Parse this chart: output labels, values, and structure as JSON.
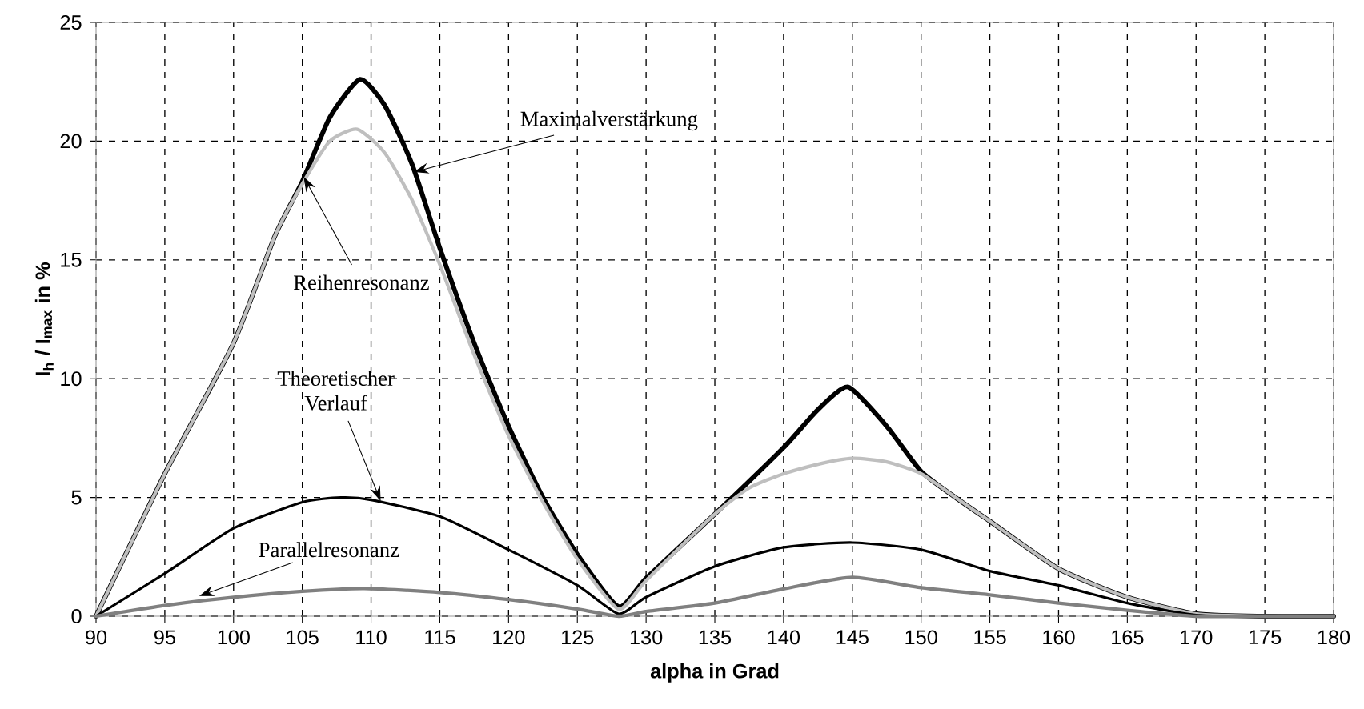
{
  "chart_data": {
    "type": "line",
    "xlabel": "alpha in Grad",
    "ylabel": "I$_{h}$ / I$_{max}$ in %",
    "xlim": [
      90,
      180
    ],
    "ylim": [
      0,
      25
    ],
    "xticks": [
      90,
      95,
      100,
      105,
      110,
      115,
      120,
      125,
      130,
      135,
      140,
      145,
      150,
      155,
      160,
      165,
      170,
      175,
      180
    ],
    "yticks": [
      0,
      5,
      10,
      15,
      20,
      25
    ],
    "grid": true,
    "series": [
      {
        "color": "#000000",
        "x": [
          90,
          95,
          100,
          103,
          105,
          107,
          109.2,
          111,
          113,
          115,
          117.5,
          120,
          122.5,
          125,
          128,
          130,
          135,
          140,
          142.5,
          144.7,
          147.5,
          150,
          152.5,
          155,
          160,
          165,
          170,
          175,
          180
        ],
        "values": [
          0,
          6,
          11.5,
          16,
          18.3,
          21,
          22.6,
          21.5,
          19,
          15.5,
          11.5,
          8,
          5,
          2.6,
          0.4,
          1.6,
          4.3,
          7.1,
          8.7,
          9.65,
          8,
          6.1,
          5,
          4,
          2,
          0.8,
          0.1,
          0,
          0
        ]
      },
      {
        "color": "#bfbfbf",
        "x": [
          90,
          95,
          100,
          103,
          105,
          107,
          109,
          111,
          113,
          115,
          117.5,
          120,
          122.5,
          125,
          128,
          130,
          135,
          137.5,
          140,
          142.5,
          145,
          147.5,
          150,
          152.5,
          155,
          160,
          165,
          170,
          175,
          180
        ],
        "values": [
          0,
          6,
          11.5,
          16,
          18.2,
          20,
          20.5,
          19.5,
          17.5,
          14.8,
          11,
          7.6,
          4.8,
          2.4,
          0.3,
          1.5,
          4.3,
          5.4,
          6.0,
          6.4,
          6.65,
          6.5,
          6.0,
          5,
          4,
          2,
          0.8,
          0.1,
          0,
          0
        ]
      },
      {
        "color": "#000000",
        "x": [
          90,
          95,
          100,
          105,
          107.8,
          110,
          115,
          120,
          125,
          128,
          130,
          135,
          140,
          145,
          150,
          155,
          160,
          165,
          170,
          175,
          180
        ],
        "values": [
          0,
          1.8,
          3.7,
          4.8,
          5.0,
          4.9,
          4.2,
          2.8,
          1.3,
          0.1,
          0.8,
          2.1,
          2.9,
          3.1,
          2.8,
          1.9,
          1.3,
          0.55,
          0.05,
          0,
          0
        ]
      },
      {
        "color": "#808080",
        "x": [
          90,
          95,
          100,
          105,
          109.5,
          115,
          120,
          125,
          128,
          130,
          135,
          140,
          145,
          150,
          155,
          160,
          165,
          170,
          175,
          180
        ],
        "values": [
          0,
          0.45,
          0.8,
          1.05,
          1.17,
          1.0,
          0.7,
          0.3,
          0,
          0.2,
          0.55,
          1.15,
          1.64,
          1.2,
          0.9,
          0.55,
          0.25,
          0,
          0,
          0
        ]
      }
    ],
    "annotations": [
      {
        "text": "Maximalverstärkung",
        "x": 113.1,
        "y": 18.7
      },
      {
        "text": "Reihenresonanz",
        "x": 105.1,
        "y": 18.5
      },
      {
        "text": "Theoretischer Verlauf",
        "x": 110.7,
        "y": 4.85
      },
      {
        "text": "Parallelresonanz",
        "x": 97.5,
        "y": 0.85
      }
    ]
  }
}
